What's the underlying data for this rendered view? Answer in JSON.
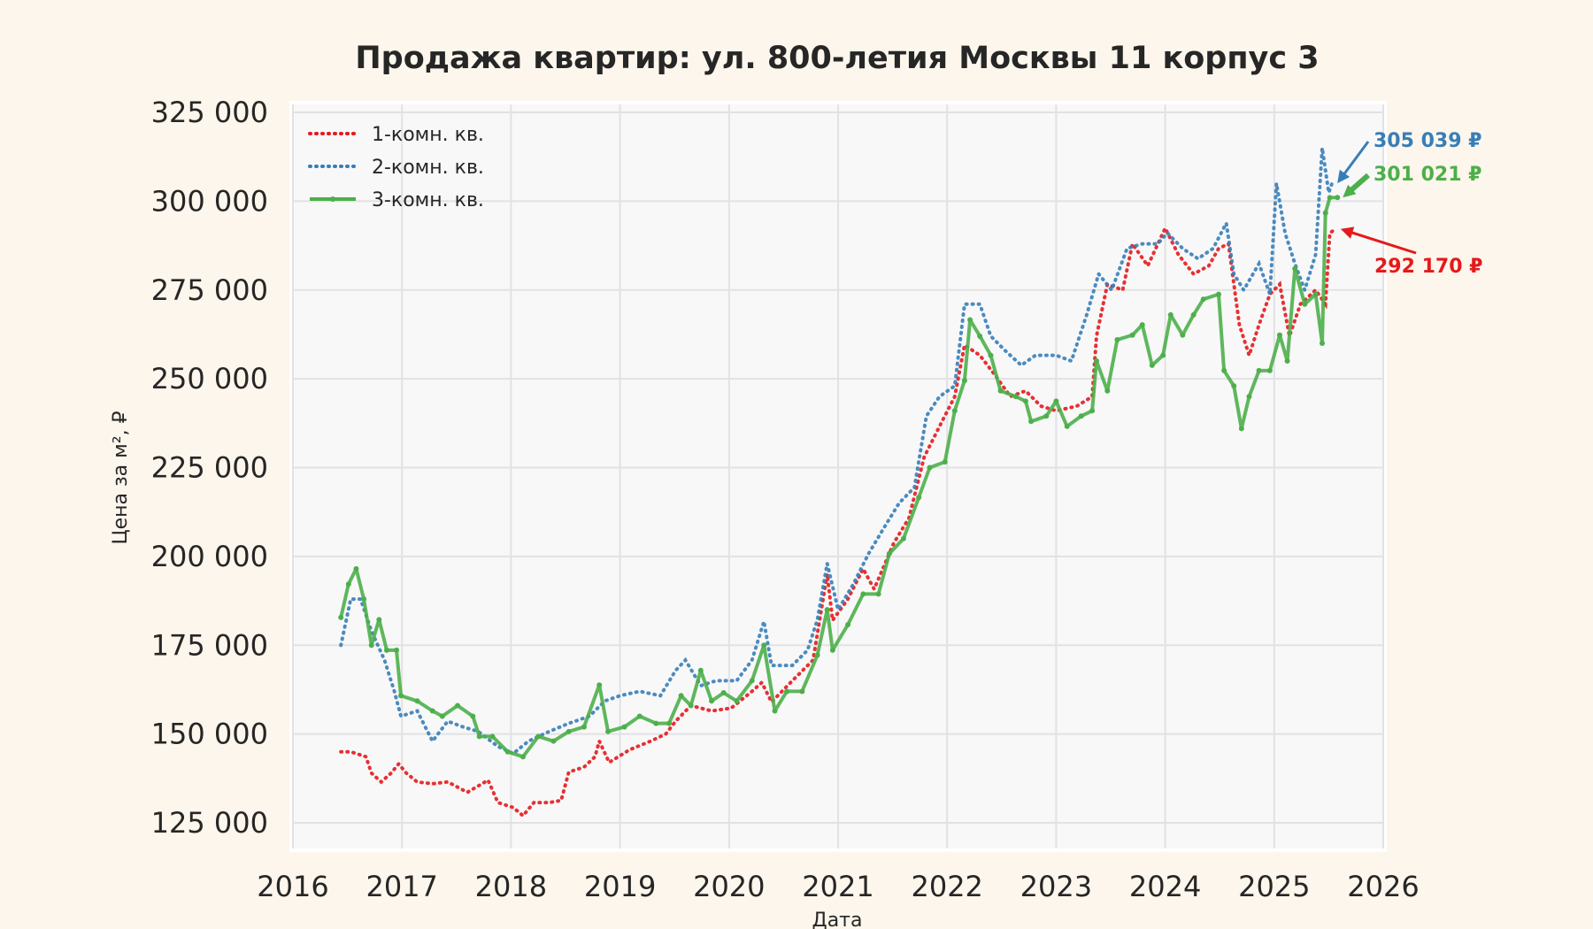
{
  "chart_data": {
    "type": "line",
    "title": "Продажа квартир: ул. 800-летия Москвы 11 корпус 3",
    "xlabel": "Дата",
    "ylabel": "Цена за м², ₽",
    "xlim": [
      2016,
      2026
    ],
    "ylim": [
      120000,
      330000
    ],
    "x_ticks": [
      "2016",
      "2017",
      "2018",
      "2019",
      "2020",
      "2021",
      "2022",
      "2023",
      "2024",
      "2025",
      "2026"
    ],
    "y_ticks": [
      125000,
      150000,
      175000,
      200000,
      225000,
      250000,
      275000,
      300000,
      325000
    ],
    "y_tick_labels": [
      "125 000",
      "150 000",
      "175 000",
      "200 000",
      "225 000",
      "250 000",
      "275 000",
      "300 000",
      "325 000"
    ],
    "grid": true,
    "legend_placement": "top-left",
    "series": [
      {
        "name": "1-комн. кв.",
        "color": "#e41a1c",
        "style": "dotted",
        "points": [
          [
            2016.44,
            145000
          ],
          [
            2016.53,
            145000
          ],
          [
            2016.67,
            143600
          ],
          [
            2016.72,
            139000
          ],
          [
            2016.81,
            136500
          ],
          [
            2016.9,
            139000
          ],
          [
            2016.97,
            141600
          ],
          [
            2017.04,
            139000
          ],
          [
            2017.14,
            136500
          ],
          [
            2017.28,
            136000
          ],
          [
            2017.42,
            136500
          ],
          [
            2017.6,
            133600
          ],
          [
            2017.79,
            137000
          ],
          [
            2017.88,
            130700
          ],
          [
            2018.02,
            129300
          ],
          [
            2018.11,
            127000
          ],
          [
            2018.21,
            130700
          ],
          [
            2018.35,
            130700
          ],
          [
            2018.46,
            131300
          ],
          [
            2018.53,
            139300
          ],
          [
            2018.67,
            140700
          ],
          [
            2018.77,
            143600
          ],
          [
            2018.81,
            148000
          ],
          [
            2018.9,
            142000
          ],
          [
            2019.09,
            145600
          ],
          [
            2019.28,
            148000
          ],
          [
            2019.42,
            150000
          ],
          [
            2019.51,
            153600
          ],
          [
            2019.65,
            158000
          ],
          [
            2019.84,
            156500
          ],
          [
            2020.02,
            157300
          ],
          [
            2020.21,
            162000
          ],
          [
            2020.3,
            164500
          ],
          [
            2020.39,
            159000
          ],
          [
            2020.58,
            165000
          ],
          [
            2020.77,
            170800
          ],
          [
            2020.9,
            195000
          ],
          [
            2020.95,
            182000
          ],
          [
            2021.09,
            188000
          ],
          [
            2021.23,
            196500
          ],
          [
            2021.33,
            190800
          ],
          [
            2021.51,
            203700
          ],
          [
            2021.65,
            210800
          ],
          [
            2021.79,
            228000
          ],
          [
            2021.93,
            236600
          ],
          [
            2022.07,
            245000
          ],
          [
            2022.16,
            259500
          ],
          [
            2022.3,
            256600
          ],
          [
            2022.44,
            251000
          ],
          [
            2022.58,
            245000
          ],
          [
            2022.72,
            246600
          ],
          [
            2022.86,
            242300
          ],
          [
            2023.0,
            241000
          ],
          [
            2023.19,
            242300
          ],
          [
            2023.33,
            245000
          ],
          [
            2023.37,
            262000
          ],
          [
            2023.47,
            276600
          ],
          [
            2023.61,
            275000
          ],
          [
            2023.7,
            288000
          ],
          [
            2023.84,
            281800
          ],
          [
            2024.0,
            292400
          ],
          [
            2024.12,
            285000
          ],
          [
            2024.26,
            279500
          ],
          [
            2024.4,
            281800
          ],
          [
            2024.49,
            286700
          ],
          [
            2024.58,
            288000
          ],
          [
            2024.68,
            265200
          ],
          [
            2024.77,
            256600
          ],
          [
            2024.86,
            265200
          ],
          [
            2024.96,
            273800
          ],
          [
            2025.05,
            276600
          ],
          [
            2025.14,
            262000
          ],
          [
            2025.24,
            271000
          ],
          [
            2025.38,
            275000
          ],
          [
            2025.47,
            271000
          ],
          [
            2025.51,
            291000
          ],
          [
            2025.56,
            292170
          ]
        ]
      },
      {
        "name": "2-комн. кв.",
        "color": "#377eb8",
        "style": "dotted",
        "points": [
          [
            2016.44,
            175000
          ],
          [
            2016.53,
            188000
          ],
          [
            2016.62,
            188000
          ],
          [
            2016.72,
            179000
          ],
          [
            2016.84,
            170800
          ],
          [
            2016.93,
            162000
          ],
          [
            2016.99,
            155000
          ],
          [
            2017.14,
            156500
          ],
          [
            2017.28,
            148000
          ],
          [
            2017.42,
            153600
          ],
          [
            2017.56,
            152000
          ],
          [
            2017.7,
            150700
          ],
          [
            2017.88,
            146500
          ],
          [
            2018.02,
            144500
          ],
          [
            2018.16,
            148000
          ],
          [
            2018.35,
            150700
          ],
          [
            2018.53,
            153000
          ],
          [
            2018.72,
            155000
          ],
          [
            2018.86,
            159300
          ],
          [
            2019.0,
            160800
          ],
          [
            2019.18,
            162000
          ],
          [
            2019.37,
            160800
          ],
          [
            2019.51,
            167900
          ],
          [
            2019.6,
            170800
          ],
          [
            2019.74,
            163600
          ],
          [
            2019.88,
            165000
          ],
          [
            2020.07,
            165000
          ],
          [
            2020.21,
            170800
          ],
          [
            2020.32,
            181700
          ],
          [
            2020.39,
            169300
          ],
          [
            2020.58,
            169300
          ],
          [
            2020.72,
            173600
          ],
          [
            2020.81,
            182200
          ],
          [
            2020.9,
            198000
          ],
          [
            2021.0,
            185000
          ],
          [
            2021.14,
            192200
          ],
          [
            2021.28,
            200800
          ],
          [
            2021.42,
            208000
          ],
          [
            2021.56,
            215000
          ],
          [
            2021.7,
            219400
          ],
          [
            2021.81,
            239500
          ],
          [
            2021.93,
            245000
          ],
          [
            2022.07,
            248000
          ],
          [
            2022.16,
            271000
          ],
          [
            2022.3,
            271000
          ],
          [
            2022.4,
            262000
          ],
          [
            2022.53,
            258000
          ],
          [
            2022.68,
            253800
          ],
          [
            2022.81,
            256600
          ],
          [
            2023.0,
            256600
          ],
          [
            2023.14,
            255000
          ],
          [
            2023.28,
            268000
          ],
          [
            2023.39,
            279500
          ],
          [
            2023.51,
            275000
          ],
          [
            2023.65,
            286700
          ],
          [
            2023.79,
            288000
          ],
          [
            2023.93,
            288000
          ],
          [
            2024.02,
            291000
          ],
          [
            2024.16,
            286700
          ],
          [
            2024.3,
            283800
          ],
          [
            2024.44,
            286700
          ],
          [
            2024.56,
            293800
          ],
          [
            2024.63,
            279500
          ],
          [
            2024.72,
            275000
          ],
          [
            2024.86,
            282400
          ],
          [
            2024.96,
            273800
          ],
          [
            2025.02,
            305000
          ],
          [
            2025.1,
            291000
          ],
          [
            2025.19,
            282400
          ],
          [
            2025.28,
            275000
          ],
          [
            2025.38,
            285000
          ],
          [
            2025.44,
            315000
          ],
          [
            2025.5,
            302400
          ],
          [
            2025.53,
            305039
          ]
        ]
      },
      {
        "name": "3-комн. кв.",
        "color": "#4daf4a",
        "style": "solid-markers",
        "points": [
          [
            2016.44,
            182800
          ],
          [
            2016.51,
            192200
          ],
          [
            2016.58,
            196500
          ],
          [
            2016.65,
            188000
          ],
          [
            2016.72,
            175000
          ],
          [
            2016.79,
            182200
          ],
          [
            2016.86,
            173600
          ],
          [
            2016.95,
            173600
          ],
          [
            2016.99,
            160800
          ],
          [
            2017.14,
            159300
          ],
          [
            2017.28,
            156500
          ],
          [
            2017.37,
            155000
          ],
          [
            2017.51,
            158000
          ],
          [
            2017.65,
            155000
          ],
          [
            2017.71,
            149300
          ],
          [
            2017.83,
            149300
          ],
          [
            2017.97,
            145000
          ],
          [
            2018.11,
            143600
          ],
          [
            2018.25,
            149300
          ],
          [
            2018.39,
            148000
          ],
          [
            2018.53,
            150700
          ],
          [
            2018.67,
            152000
          ],
          [
            2018.81,
            163800
          ],
          [
            2018.89,
            150700
          ],
          [
            2019.04,
            152000
          ],
          [
            2019.18,
            155000
          ],
          [
            2019.33,
            153000
          ],
          [
            2019.45,
            153000
          ],
          [
            2019.56,
            160800
          ],
          [
            2019.65,
            158000
          ],
          [
            2019.74,
            167900
          ],
          [
            2019.84,
            159300
          ],
          [
            2019.95,
            161600
          ],
          [
            2020.07,
            159300
          ],
          [
            2020.21,
            165000
          ],
          [
            2020.32,
            175000
          ],
          [
            2020.42,
            156500
          ],
          [
            2020.53,
            162000
          ],
          [
            2020.67,
            162000
          ],
          [
            2020.81,
            172200
          ],
          [
            2020.9,
            185000
          ],
          [
            2020.95,
            173600
          ],
          [
            2021.09,
            180800
          ],
          [
            2021.23,
            189400
          ],
          [
            2021.37,
            189400
          ],
          [
            2021.47,
            200800
          ],
          [
            2021.6,
            205000
          ],
          [
            2021.74,
            216600
          ],
          [
            2021.84,
            225000
          ],
          [
            2021.98,
            226600
          ],
          [
            2022.07,
            241000
          ],
          [
            2022.16,
            249500
          ],
          [
            2022.21,
            266600
          ],
          [
            2022.3,
            262000
          ],
          [
            2022.4,
            256600
          ],
          [
            2022.49,
            246600
          ],
          [
            2022.63,
            245000
          ],
          [
            2022.72,
            243700
          ],
          [
            2022.77,
            238000
          ],
          [
            2022.91,
            239500
          ],
          [
            2023.0,
            243700
          ],
          [
            2023.1,
            236600
          ],
          [
            2023.23,
            239500
          ],
          [
            2023.33,
            241000
          ],
          [
            2023.37,
            255000
          ],
          [
            2023.47,
            246600
          ],
          [
            2023.56,
            261000
          ],
          [
            2023.7,
            262300
          ],
          [
            2023.79,
            265200
          ],
          [
            2023.88,
            253800
          ],
          [
            2023.98,
            256600
          ],
          [
            2024.05,
            268000
          ],
          [
            2024.16,
            262300
          ],
          [
            2024.26,
            268000
          ],
          [
            2024.35,
            272400
          ],
          [
            2024.49,
            273800
          ],
          [
            2024.54,
            252300
          ],
          [
            2024.63,
            248000
          ],
          [
            2024.7,
            236000
          ],
          [
            2024.77,
            245000
          ],
          [
            2024.86,
            252300
          ],
          [
            2024.96,
            252300
          ],
          [
            2025.05,
            262300
          ],
          [
            2025.12,
            255000
          ],
          [
            2025.19,
            281000
          ],
          [
            2025.28,
            271000
          ],
          [
            2025.38,
            273800
          ],
          [
            2025.44,
            260000
          ],
          [
            2025.47,
            296700
          ],
          [
            2025.51,
            301000
          ],
          [
            2025.58,
            301021
          ]
        ]
      }
    ],
    "annotations": [
      {
        "series": "2-комн. кв.",
        "text": "305 039 ₽",
        "color": "#377eb8"
      },
      {
        "series": "3-комн. кв.",
        "text": "301 021 ₽",
        "color": "#4daf4a"
      },
      {
        "series": "1-комн. кв.",
        "text": "292 170 ₽",
        "color": "#e41a1c"
      }
    ]
  }
}
